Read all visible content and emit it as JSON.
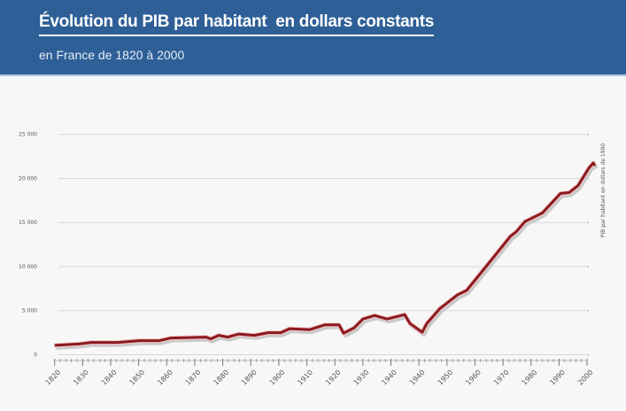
{
  "header": {
    "title": "Évolution du PIB par habitant  en dollars constants",
    "subtitle": "en France de 1820 à 2000"
  },
  "colors": {
    "header_bg": "#2e5f97",
    "line": "#8b1a1f",
    "grid": "#d8d8d8"
  },
  "chart_data": {
    "type": "line",
    "title": "Évolution du PIB par habitant  en dollars constants",
    "subtitle": "en France de 1820 à 2000",
    "xlabel": "",
    "ylabel": "PIB par habitant en dollars de 1990",
    "ylim": [
      0,
      25000
    ],
    "y_ticks": [
      0,
      5000,
      10000,
      15000,
      20000,
      25000
    ],
    "y_tick_labels": [
      "0",
      "5 000",
      "10 000",
      "15 000",
      "20 000",
      "25 000"
    ],
    "x_tick_labels": [
      "1820",
      "1830",
      "1840",
      "1850",
      "1860",
      "1870",
      "1880",
      "1890",
      "1900",
      "1910",
      "1920",
      "1930",
      "1940",
      "1940",
      "1950",
      "1960",
      "1970",
      "1980",
      "1990",
      "2000"
    ],
    "x_units": "tick index (0 = 1820 label, 19 = 2000 label)",
    "grid": true,
    "series": [
      {
        "name": "PIB par habitant",
        "points": [
          [
            0,
            1070
          ],
          [
            0.89,
            1240
          ],
          [
            1.31,
            1400
          ],
          [
            2.25,
            1400
          ],
          [
            3.01,
            1600
          ],
          [
            3.74,
            1600
          ],
          [
            4.15,
            1900
          ],
          [
            5.41,
            2000
          ],
          [
            5.57,
            1800
          ],
          [
            5.85,
            2200
          ],
          [
            6.17,
            2000
          ],
          [
            6.58,
            2350
          ],
          [
            7.12,
            2200
          ],
          [
            7.62,
            2500
          ],
          [
            8.07,
            2500
          ],
          [
            8.38,
            2950
          ],
          [
            9.11,
            2850
          ],
          [
            9.65,
            3400
          ],
          [
            10.15,
            3400
          ],
          [
            10.31,
            2450
          ],
          [
            10.69,
            3050
          ],
          [
            11.0,
            4050
          ],
          [
            11.42,
            4450
          ],
          [
            11.86,
            4050
          ],
          [
            12.49,
            4550
          ],
          [
            12.68,
            3550
          ],
          [
            13.12,
            2550
          ],
          [
            13.28,
            3550
          ],
          [
            13.75,
            5250
          ],
          [
            14.38,
            6800
          ],
          [
            14.7,
            7300
          ],
          [
            15.42,
            10100
          ],
          [
            16.27,
            13450
          ],
          [
            16.47,
            13950
          ],
          [
            16.78,
            15100
          ],
          [
            17.41,
            16100
          ],
          [
            18.05,
            18300
          ],
          [
            18.36,
            18400
          ],
          [
            18.68,
            19200
          ],
          [
            19.06,
            21150
          ],
          [
            19.22,
            21750
          ],
          [
            19.28,
            21450
          ]
        ]
      }
    ]
  }
}
